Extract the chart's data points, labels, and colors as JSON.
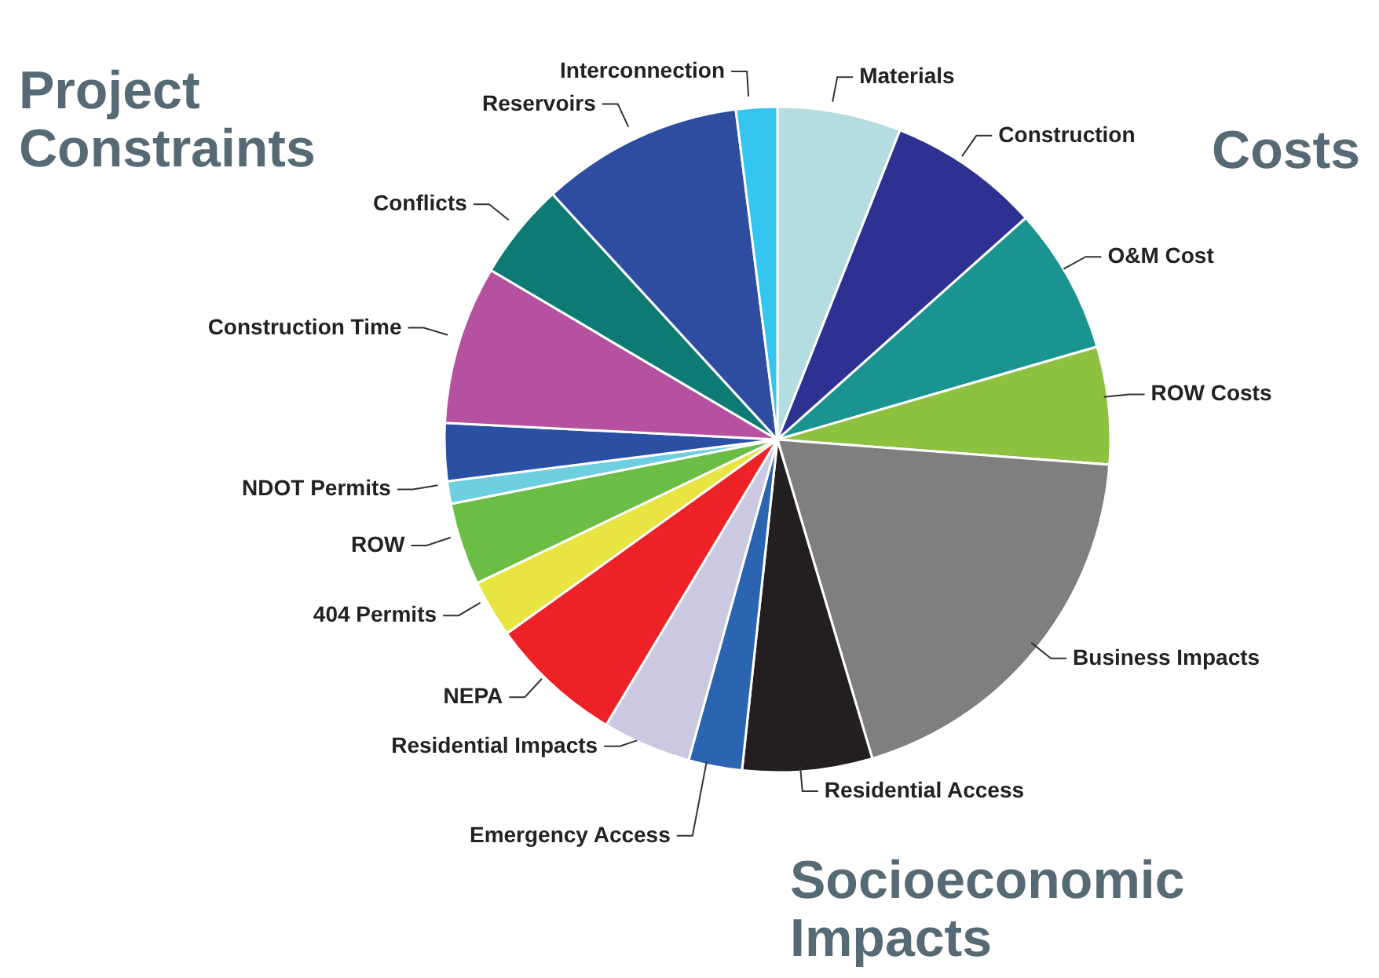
{
  "chart_data": {
    "type": "pie",
    "categories": [
      "Materials",
      "Construction",
      "O&M Cost",
      "ROW Costs",
      "Business Impacts",
      "Residential Access",
      "Emergency Access",
      "Residential Impacts",
      "NEPA",
      "404 Permits",
      "ROW",
      "NDOT Permits",
      null,
      "Construction Time",
      "Conflicts",
      "Reservoirs",
      "Interconnection"
    ],
    "values": [
      6.0,
      7.4,
      7.1,
      5.7,
      19.2,
      6.3,
      2.6,
      4.3,
      6.5,
      2.8,
      4.0,
      1.1,
      2.8,
      7.7,
      4.7,
      9.8,
      2.0
    ],
    "colors": [
      "#b3dde0",
      "#2e3192",
      "#1a9491",
      "#8dc13f",
      "#7f7f7e",
      "#231f20",
      "#2b65b1",
      "#cbc9e2",
      "#ec2227",
      "#e8e441",
      "#6bbd45",
      "#6dcfe0",
      "#2b4fa3",
      "#b5519f",
      "#0e7a74",
      "#2e4da0",
      "#34c5f0"
    ],
    "annotations": [
      "Costs",
      "Socioeconomic Impacts",
      "Project Constraints"
    ],
    "legend": false
  }
}
